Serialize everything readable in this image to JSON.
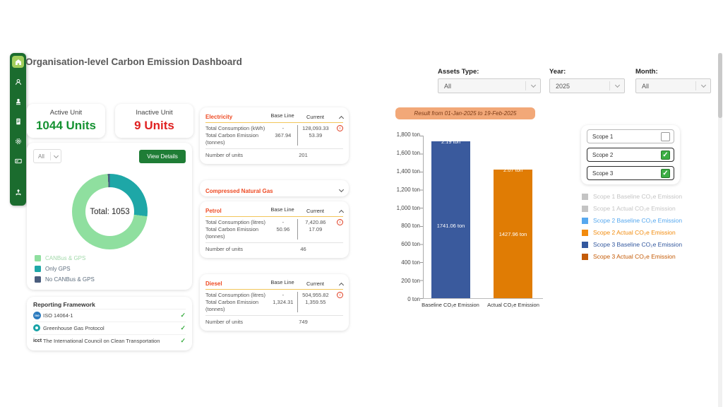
{
  "app": {
    "title": "Organisation-level Carbon Emission Dashboard"
  },
  "sidebar": {
    "items": [
      {
        "icon": "home-icon",
        "active": true
      },
      {
        "icon": "user-circle-icon",
        "active": false
      },
      {
        "icon": "user-location-icon",
        "active": false
      },
      {
        "icon": "document-icon",
        "active": false
      },
      {
        "icon": "settings-icon",
        "active": false
      },
      {
        "icon": "mail-icon",
        "active": false
      },
      {
        "icon": "user-upload-icon",
        "active": false
      }
    ]
  },
  "summary_cards": {
    "active": {
      "label": "Active Unit",
      "value": "1044 Units",
      "color": "#169232"
    },
    "inactive": {
      "label": "Inactive Unit",
      "value": "9 Units",
      "color": "#e02222"
    }
  },
  "unit_distribution": {
    "filter_value": "All",
    "view_details_label": "View Details",
    "center_label": "Total: 1053",
    "chart": {
      "type": "donut",
      "total": 1053,
      "segments": [
        {
          "label": "Only GPS",
          "value": 284,
          "color": "#1ea7a7"
        },
        {
          "label": "CANBus & GPS",
          "value": 760,
          "color": "#8fdf9f"
        },
        {
          "label": "No CANBus & GPS",
          "value": 9,
          "color": "#4a5d7d"
        }
      ]
    },
    "legend": [
      {
        "label": "CANBus & GPS",
        "color": "#8fdf9f",
        "text_color": "#a3d9ab"
      },
      {
        "label": "Only GPS",
        "color": "#1ea7a7",
        "text_color": "#5e6e7e"
      },
      {
        "label": "No CANBus & GPS",
        "color": "#4a5d7d",
        "text_color": "#5e6e7e"
      }
    ]
  },
  "reporting_framework": {
    "title": "Reporting Framework",
    "items": [
      {
        "icon": "iso-logo-icon",
        "icon_text": "iso",
        "label": "ISO 14064-1"
      },
      {
        "icon": "ghg-logo-icon",
        "icon_text": "",
        "label": "Greenhouse Gas Protocol"
      },
      {
        "icon": "icct-logo-icon",
        "icon_text": "icct",
        "label": "The International Council on Clean Transportation"
      }
    ]
  },
  "fuel": {
    "title_color": "#ee4a23",
    "columns": {
      "baseline": "Base Line",
      "current": "Current"
    },
    "panels": [
      {
        "title": "Electricity",
        "consumption_label": "Total Consumption (kWh)",
        "baseline_consumption": "-",
        "current_consumption": "128,093.33",
        "emission_label": "Total Carbon Emission (tonnes)",
        "baseline_emission": "367.94",
        "current_emission": "53.39",
        "units_label": "Number of units",
        "units_value": "201"
      },
      {
        "title": "Compressed Natural Gas"
      },
      {
        "title": "Petrol",
        "consumption_label": "Total Consumption (litres)",
        "baseline_consumption": "-",
        "current_consumption": "7,420.86",
        "emission_label": "Total Carbon Emission (tonnes)",
        "baseline_emission": "50.96",
        "current_emission": "17.09",
        "units_label": "Number of units",
        "units_value": "46"
      },
      {
        "title": "Diesel",
        "consumption_label": "Total Consumption (litres)",
        "baseline_consumption": "-",
        "current_consumption": "504,955.82",
        "emission_label": "Total Carbon Emission (tonnes)",
        "baseline_emission": "1,324.31",
        "current_emission": "1,359.55",
        "units_label": "Number of units",
        "units_value": "749"
      }
    ]
  },
  "filters": {
    "assets_type": {
      "label": "Assets Type:",
      "value": "All"
    },
    "year": {
      "label": "Year:",
      "value": "2025"
    },
    "month": {
      "label": "Month:",
      "value": "All"
    }
  },
  "result_banner": {
    "text": "Result from 01-Jan-2025 to 19-Feb-2025",
    "bg": "#f2a878"
  },
  "chart_data": {
    "type": "bar",
    "stacked": true,
    "categories": [
      "Baseline CO₂e Emission",
      "Actual CO₂e Emission"
    ],
    "series": [
      {
        "name": "Scope 3",
        "values": [
          1741.06,
          1427.96
        ],
        "colors": [
          "#3a5a9d",
          "#e07c04"
        ]
      },
      {
        "name": "Scope 2",
        "values": [
          2.19,
          2.07
        ],
        "colors": [
          "#5aa9ee",
          "#f28b0d"
        ]
      }
    ],
    "bar_labels": [
      "1741.06 ton",
      "1427.96 ton"
    ],
    "top_labels": [
      "2.19 ton",
      "2.07 ton"
    ],
    "ylabel": "",
    "ylim": [
      0,
      1800
    ],
    "ytick_step": 200,
    "yticks": [
      "1,800 ton",
      "1,600 ton",
      "1,400 ton",
      "1,200 ton",
      "1,000 ton",
      "800 ton",
      "600 ton",
      "400 ton",
      "200 ton",
      "0 ton"
    ],
    "legend_position": "right",
    "grid": false
  },
  "scope_filters": [
    {
      "label": "Scope 1",
      "checked": false
    },
    {
      "label": "Scope 2",
      "checked": true
    },
    {
      "label": "Scope 3",
      "checked": true
    }
  ],
  "chart_legend": [
    {
      "label": "Scope 1 Baseline CO₂e Emission",
      "color": "#c4c4c4",
      "muted": true
    },
    {
      "label": "Scope 1 Actual CO₂e Emission",
      "color": "#c4c4c4",
      "muted": true
    },
    {
      "label": "Scope 2 Baseline CO₂e Emission",
      "color": "#56a8ef",
      "muted": false
    },
    {
      "label": "Scope 2 Actual CO₂e Emission",
      "color": "#f28b0d",
      "muted": false
    },
    {
      "label": "Scope 3 Baseline CO₂e Emission",
      "color": "#33589e",
      "muted": false
    },
    {
      "label": "Scope 3 Actual CO₂e Emission",
      "color": "#c45b07",
      "muted": false
    }
  ]
}
